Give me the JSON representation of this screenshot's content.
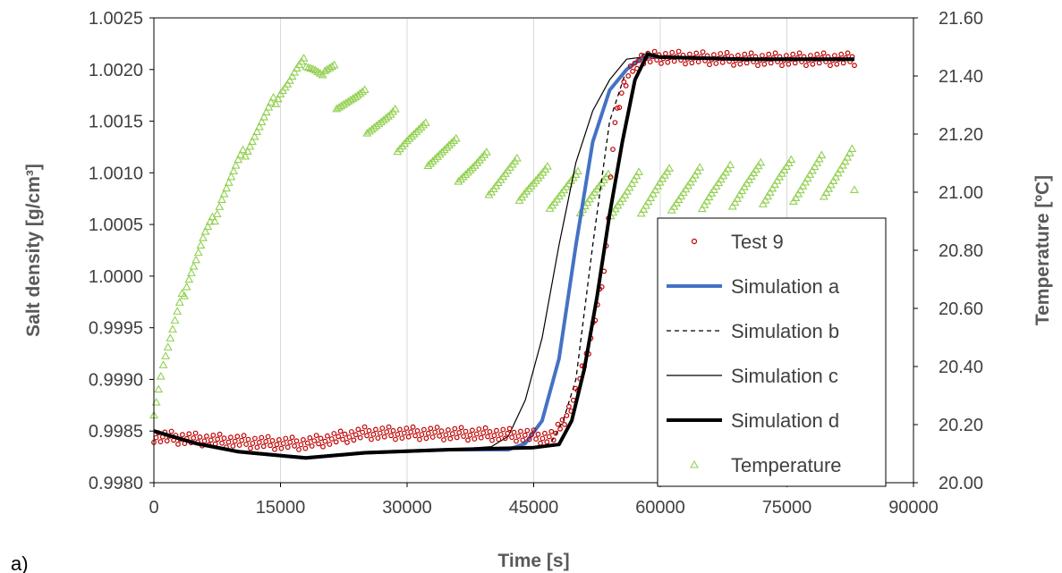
{
  "panel_label": "a)",
  "chart_data": {
    "type": "scatter",
    "title": "",
    "xlabel": "Time [s]",
    "ylabel": "Salt density [g/cm³]",
    "y2label": "Temperature [ºC]",
    "xlim": [
      0,
      90000
    ],
    "ylim": [
      0.998,
      1.0025
    ],
    "y2lim": [
      20.0,
      21.6
    ],
    "xticks": [
      "0",
      "15000",
      "30000",
      "45000",
      "60000",
      "75000",
      "90000"
    ],
    "yticks": [
      "0.9980",
      "0.9985",
      "0.9990",
      "0.9995",
      "1.0000",
      "1.0005",
      "1.0010",
      "1.0015",
      "1.0020",
      "1.0025"
    ],
    "y2ticks": [
      "20.00",
      "20.20",
      "20.40",
      "20.60",
      "20.80",
      "21.00",
      "21.20",
      "21.40",
      "21.60"
    ],
    "grid": "vertical",
    "legend_position": "lower-right",
    "colors": {
      "test": "#c00000",
      "sim_a": "#4472c4",
      "sim_b": "#000000",
      "sim_c": "#000000",
      "sim_d": "#000000",
      "temperature": "#92d050",
      "grid": "#d9d9d9",
      "axis": "#000000"
    },
    "series": [
      {
        "name": "Test 9",
        "axis": "left",
        "style": "markers-circle",
        "x": [
          0,
          5000,
          10000,
          15000,
          18000,
          25000,
          30000,
          40000,
          44000,
          46000,
          47500,
          48500,
          49500,
          50500,
          51500,
          52500,
          53500,
          54500,
          55500,
          56500,
          57500,
          60000,
          70000,
          83000
        ],
        "y": [
          0.99845,
          0.99842,
          0.9984,
          0.99838,
          0.99838,
          0.99848,
          0.99848,
          0.99847,
          0.99846,
          0.99844,
          0.99845,
          0.9986,
          0.99875,
          0.999,
          0.9993,
          0.9997,
          1.0001,
          1.00145,
          1.0018,
          1.00198,
          1.0021,
          1.00212,
          1.0021,
          1.0021
        ]
      },
      {
        "name": "Simulation a",
        "axis": "left",
        "style": "line-thick-blue",
        "x": [
          0,
          5000,
          10000,
          18000,
          25000,
          35000,
          42000,
          44000,
          46000,
          48000,
          50000,
          52000,
          54000,
          56000,
          58000,
          60000,
          70000,
          83000
        ],
        "y": [
          0.9985,
          0.99838,
          0.9983,
          0.99824,
          0.99829,
          0.99832,
          0.99832,
          0.99838,
          0.9986,
          0.9992,
          1.0003,
          1.0013,
          1.0018,
          1.002,
          1.00212,
          1.00212,
          1.0021,
          1.0021
        ]
      },
      {
        "name": "Simulation b",
        "axis": "left",
        "style": "line-dashed",
        "x": [
          0,
          5000,
          10000,
          18000,
          25000,
          35000,
          45000,
          47000,
          48500,
          50000,
          52000,
          54000,
          56000,
          58000,
          60000,
          70000,
          83000
        ],
        "y": [
          0.9985,
          0.99838,
          0.9983,
          0.99824,
          0.99829,
          0.99832,
          0.99833,
          0.99838,
          0.9986,
          0.999,
          1.0003,
          1.0015,
          1.002,
          1.00215,
          1.00212,
          1.0021,
          1.0021
        ]
      },
      {
        "name": "Simulation c",
        "axis": "left",
        "style": "line-thin",
        "x": [
          0,
          5000,
          10000,
          18000,
          25000,
          35000,
          40000,
          42000,
          44000,
          46000,
          48000,
          50000,
          52000,
          54000,
          56000,
          58000,
          60000,
          70000,
          83000
        ],
        "y": [
          0.9985,
          0.99838,
          0.9983,
          0.99824,
          0.99829,
          0.99832,
          0.99835,
          0.99845,
          0.9988,
          0.9994,
          1.0003,
          1.0011,
          1.0016,
          1.0019,
          1.0021,
          1.00212,
          1.00212,
          1.0021,
          1.0021
        ]
      },
      {
        "name": "Simulation d",
        "axis": "left",
        "style": "line-thick-black",
        "x": [
          0,
          5000,
          10000,
          18000,
          25000,
          35000,
          45000,
          48000,
          49500,
          51000,
          52500,
          54000,
          55500,
          57000,
          58500,
          60000,
          70000,
          83000
        ],
        "y": [
          0.9985,
          0.99838,
          0.9983,
          0.99824,
          0.99829,
          0.99832,
          0.99834,
          0.99837,
          0.9986,
          0.9991,
          0.9998,
          1.0006,
          1.0013,
          1.0019,
          1.00215,
          1.00212,
          1.0021,
          1.0021
        ]
      },
      {
        "name": "Temperature",
        "axis": "right",
        "style": "markers-triangle",
        "x": [
          0,
          1000,
          2000,
          3000,
          4000,
          5000,
          6000,
          7000,
          8000,
          9000,
          10000,
          11000,
          12000,
          13000,
          14000,
          15000,
          16000,
          17000,
          18000,
          19000,
          20000,
          22000,
          24000,
          26000,
          28000,
          30000,
          32000,
          34000,
          36000,
          38000,
          40000,
          42000,
          44000,
          46000,
          48000,
          50000,
          52000,
          54000,
          56000,
          58000,
          60000,
          62000,
          64000,
          66000,
          68000,
          70000,
          72000,
          74000,
          76000,
          78000,
          80000,
          82000,
          83000
        ],
        "y": [
          20.25,
          20.4,
          20.5,
          20.6,
          20.7,
          20.77,
          20.85,
          20.9,
          20.98,
          21.04,
          21.1,
          21.15,
          21.2,
          21.25,
          21.3,
          21.35,
          21.38,
          21.42,
          21.45,
          21.43,
          21.4,
          21.35,
          21.3,
          21.26,
          21.22,
          21.2,
          21.17,
          21.14,
          21.11,
          21.08,
          21.06,
          21.05,
          21.04,
          21.02,
          21.01,
          21.0,
          21.0,
          20.99,
          20.99,
          21.0,
          21.01,
          21.01,
          21.01,
          21.02,
          21.02,
          21.03,
          21.03,
          21.04,
          21.04,
          21.05,
          21.06,
          21.07,
          21.08
        ]
      }
    ]
  }
}
